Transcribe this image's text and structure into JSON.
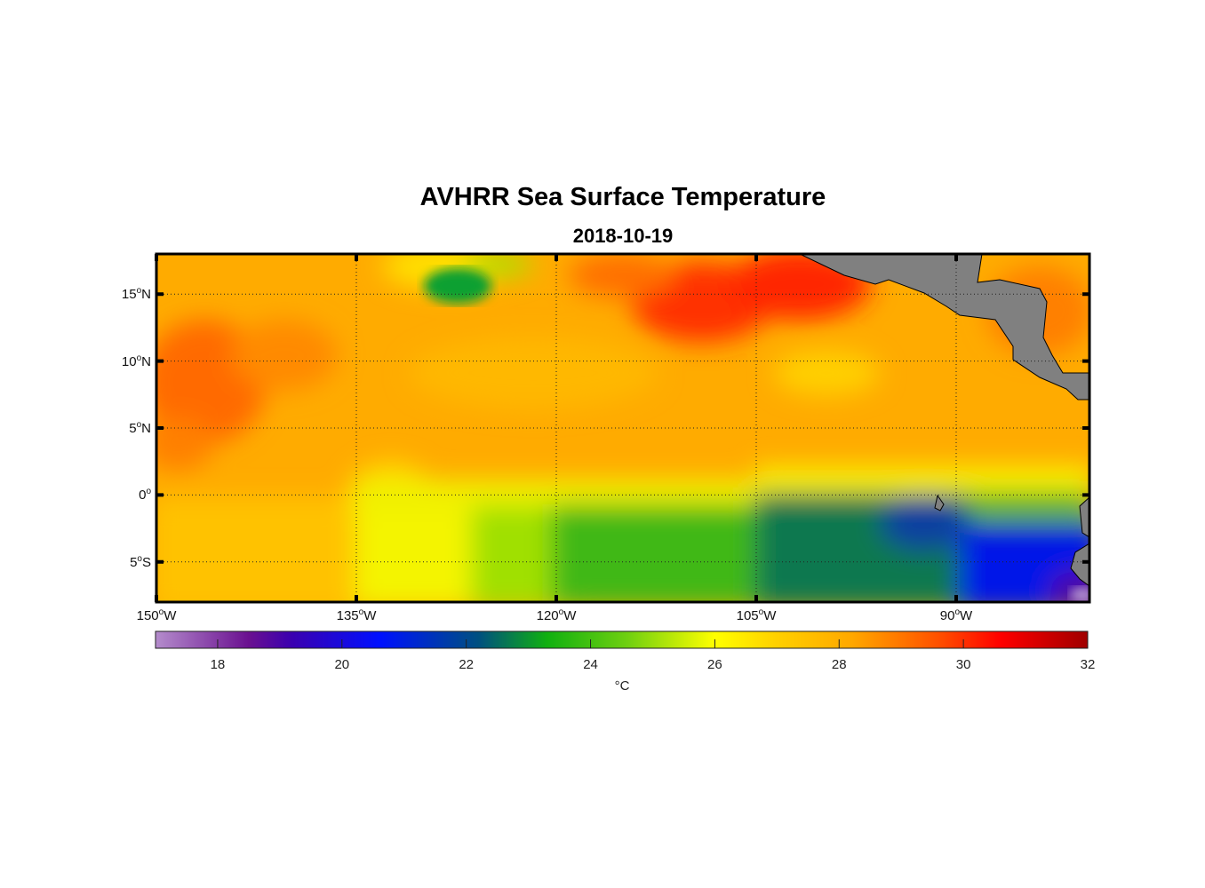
{
  "title": "AVHRR Sea Surface Temperature",
  "subtitle": "2018-10-19",
  "map": {
    "lon_range": [
      -150,
      -80
    ],
    "lat_range": [
      -8,
      18
    ],
    "lat_labels": [
      {
        "v": 15,
        "t": "15",
        "h": "N"
      },
      {
        "v": 10,
        "t": "10",
        "h": "N"
      },
      {
        "v": 5,
        "t": "5",
        "h": "N"
      },
      {
        "v": 0,
        "t": "0",
        "h": ""
      },
      {
        "v": -5,
        "t": "5",
        "h": "S"
      }
    ],
    "lon_labels": [
      {
        "v": -150,
        "t": "150",
        "h": "W"
      },
      {
        "v": -135,
        "t": "135",
        "h": "W"
      },
      {
        "v": -120,
        "t": "120",
        "h": "W"
      },
      {
        "v": -105,
        "t": "105",
        "h": "W"
      },
      {
        "v": -90,
        "t": "90",
        "h": "W"
      }
    ],
    "land_color": "#808080"
  },
  "colorbar": {
    "range": [
      17,
      32
    ],
    "ticks": [
      "18",
      "20",
      "22",
      "24",
      "26",
      "28",
      "30",
      "32"
    ],
    "unit": "°C",
    "stops": [
      [
        "#b48ccc",
        17
      ],
      [
        "#6a1090",
        18.5
      ],
      [
        "#3a00b0",
        19.2
      ],
      [
        "#0010ff",
        20.6
      ],
      [
        "#005080",
        22.2
      ],
      [
        "#10b010",
        23.3
      ],
      [
        "#70d010",
        24.6
      ],
      [
        "#ffff00",
        26
      ],
      [
        "#ffd000",
        27
      ],
      [
        "#ffa800",
        28.2
      ],
      [
        "#ff5000",
        29.6
      ],
      [
        "#ff0000",
        30.6
      ],
      [
        "#a00000",
        32
      ]
    ]
  }
}
